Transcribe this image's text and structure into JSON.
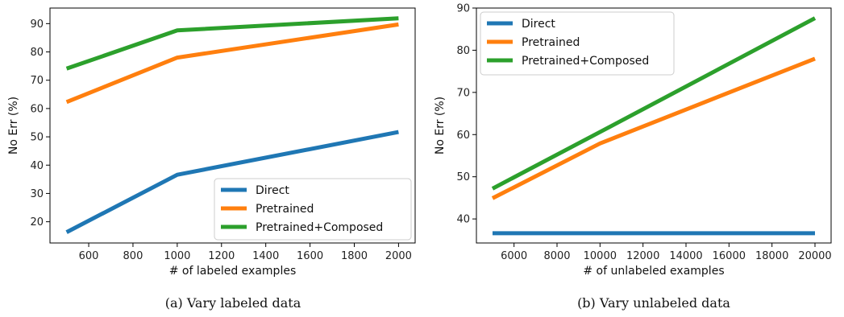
{
  "colors": {
    "Direct": "#1f77b4",
    "Pretrained": "#ff7f0e",
    "Pretrained+Composed": "#2ca02c"
  },
  "chart_data": [
    {
      "type": "line",
      "caption": "(a) Vary labeled data",
      "xlabel": "# of labeled examples",
      "ylabel": "No Err (%)",
      "xlim": [
        425,
        2075
      ],
      "ylim": [
        12.5,
        95.5
      ],
      "xticks": [
        600,
        800,
        1000,
        1200,
        1400,
        1600,
        1800,
        2000
      ],
      "yticks": [
        20,
        30,
        40,
        50,
        60,
        70,
        80,
        90
      ],
      "x": [
        500,
        1000,
        2000
      ],
      "legend": "lower-right",
      "grid": false,
      "series": [
        {
          "name": "Direct",
          "values": [
            16.3,
            36.6,
            51.7
          ]
        },
        {
          "name": "Pretrained",
          "values": [
            62.3,
            78.0,
            89.7
          ]
        },
        {
          "name": "Pretrained+Composed",
          "values": [
            74.1,
            87.6,
            91.9
          ]
        }
      ]
    },
    {
      "type": "line",
      "caption": "(b) Vary unlabeled data",
      "xlabel": "# of unlabeled examples",
      "ylabel": "No Err (%)",
      "xlim": [
        4250,
        20750
      ],
      "ylim": [
        34.3,
        90
      ],
      "xticks": [
        6000,
        8000,
        10000,
        12000,
        14000,
        16000,
        18000,
        20000
      ],
      "yticks": [
        40,
        50,
        60,
        70,
        80,
        90
      ],
      "x": [
        5000,
        10000,
        20000
      ],
      "legend": "upper-left",
      "grid": false,
      "series": [
        {
          "name": "Direct",
          "values": [
            36.6,
            36.6,
            36.6
          ]
        },
        {
          "name": "Pretrained",
          "values": [
            44.9,
            57.9,
            78.0
          ]
        },
        {
          "name": "Pretrained+Composed",
          "values": [
            47.2,
            60.6,
            87.6
          ]
        }
      ]
    }
  ]
}
